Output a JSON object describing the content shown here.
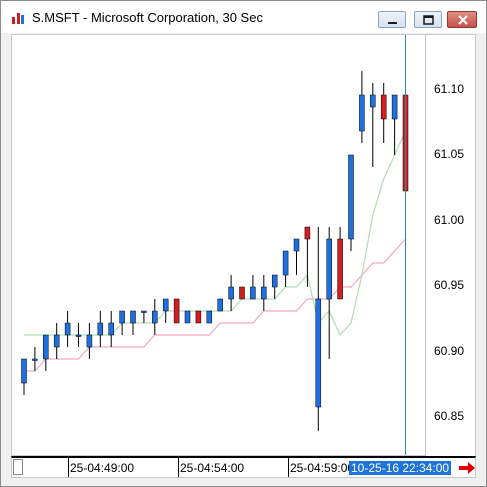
{
  "window": {
    "title": "S.MSFT - Microsoft Corporation, 30 Sec",
    "icon": "chart-app-icon",
    "controls": [
      "minimize-icon",
      "maximize-icon",
      "close-icon"
    ]
  },
  "price_axis": {
    "labels": [
      "61.10",
      "61.05",
      "61.00",
      "60.95",
      "60.90",
      "60.85"
    ]
  },
  "time_axis": {
    "labels": [
      "25-04:49:00",
      "25-04:54:00",
      "25-04:59:00"
    ],
    "crosshair_label": "10-25-16 22:34:00",
    "nav_arrow": "arrow-right-icon"
  },
  "colors": {
    "up": "#1e6fe0",
    "down": "#d21e1e",
    "ma_fast": "#b8dcb8",
    "ma_slow": "#f5a8c8",
    "crosshair": "#2a8aa0"
  },
  "chart_data": {
    "type": "candlestick",
    "ylim": [
      60.81,
      61.16
    ],
    "candles": [
      {
        "o": 60.87,
        "h": 60.89,
        "l": 60.86,
        "c": 60.89
      },
      {
        "o": 60.89,
        "h": 60.9,
        "l": 60.88,
        "c": 60.89
      },
      {
        "o": 60.89,
        "h": 60.91,
        "l": 60.88,
        "c": 60.91
      },
      {
        "o": 60.9,
        "h": 60.92,
        "l": 60.89,
        "c": 60.91
      },
      {
        "o": 60.91,
        "h": 60.93,
        "l": 60.9,
        "c": 60.92
      },
      {
        "o": 60.91,
        "h": 60.92,
        "l": 60.9,
        "c": 60.91
      },
      {
        "o": 60.9,
        "h": 60.92,
        "l": 60.89,
        "c": 60.91
      },
      {
        "o": 60.91,
        "h": 60.93,
        "l": 60.9,
        "c": 60.92
      },
      {
        "o": 60.91,
        "h": 60.93,
        "l": 60.9,
        "c": 60.92
      },
      {
        "o": 60.92,
        "h": 60.93,
        "l": 60.91,
        "c": 60.93
      },
      {
        "o": 60.92,
        "h": 60.93,
        "l": 60.91,
        "c": 60.93
      },
      {
        "o": 60.93,
        "h": 60.93,
        "l": 60.92,
        "c": 60.93
      },
      {
        "o": 60.92,
        "h": 60.94,
        "l": 60.91,
        "c": 60.93
      },
      {
        "o": 60.93,
        "h": 60.94,
        "l": 60.92,
        "c": 60.94
      },
      {
        "o": 60.94,
        "h": 60.94,
        "l": 60.92,
        "c": 60.92
      },
      {
        "o": 60.92,
        "h": 60.93,
        "l": 60.92,
        "c": 60.93
      },
      {
        "o": 60.93,
        "h": 60.93,
        "l": 60.92,
        "c": 60.92
      },
      {
        "o": 60.92,
        "h": 60.93,
        "l": 60.92,
        "c": 60.93
      },
      {
        "o": 60.93,
        "h": 60.94,
        "l": 60.93,
        "c": 60.94
      },
      {
        "o": 60.94,
        "h": 60.96,
        "l": 60.93,
        "c": 60.95
      },
      {
        "o": 60.95,
        "h": 60.95,
        "l": 60.94,
        "c": 60.94
      },
      {
        "o": 60.94,
        "h": 60.96,
        "l": 60.94,
        "c": 60.95
      },
      {
        "o": 60.94,
        "h": 60.96,
        "l": 60.93,
        "c": 60.95
      },
      {
        "o": 60.95,
        "h": 60.96,
        "l": 60.94,
        "c": 60.96
      },
      {
        "o": 60.96,
        "h": 60.98,
        "l": 60.95,
        "c": 60.98
      },
      {
        "o": 60.98,
        "h": 60.99,
        "l": 60.96,
        "c": 60.99
      },
      {
        "o": 61.0,
        "h": 61.0,
        "l": 60.95,
        "c": 60.99
      },
      {
        "o": 60.85,
        "h": 61.0,
        "l": 60.83,
        "c": 60.94
      },
      {
        "o": 60.94,
        "h": 61.0,
        "l": 60.89,
        "c": 60.99
      },
      {
        "o": 60.99,
        "h": 61.0,
        "l": 60.94,
        "c": 60.94
      },
      {
        "o": 60.99,
        "h": 61.06,
        "l": 60.98,
        "c": 61.06
      },
      {
        "o": 61.08,
        "h": 61.13,
        "l": 61.07,
        "c": 61.11
      },
      {
        "o": 61.1,
        "h": 61.12,
        "l": 61.05,
        "c": 61.11
      },
      {
        "o": 61.11,
        "h": 61.12,
        "l": 61.07,
        "c": 61.09
      },
      {
        "o": 61.09,
        "h": 61.11,
        "l": 61.06,
        "c": 61.11
      },
      {
        "o": 61.11,
        "h": 61.12,
        "l": 61.03,
        "c": 61.03
      }
    ],
    "ma_fast": [
      60.91,
      60.91,
      60.91,
      60.91,
      60.91,
      60.91,
      60.91,
      60.91,
      60.91,
      60.92,
      60.92,
      60.92,
      60.92,
      60.93,
      60.93,
      60.93,
      60.93,
      60.93,
      60.93,
      60.93,
      60.94,
      60.94,
      60.94,
      60.94,
      60.95,
      60.95,
      60.96,
      60.92,
      60.93,
      60.91,
      60.92,
      60.96,
      61.01,
      61.04,
      61.06,
      61.08
    ],
    "ma_slow": [
      60.88,
      60.88,
      60.89,
      60.89,
      60.89,
      60.89,
      60.9,
      60.9,
      60.9,
      60.9,
      60.9,
      60.9,
      60.91,
      60.91,
      60.91,
      60.91,
      60.91,
      60.91,
      60.92,
      60.92,
      60.92,
      60.92,
      60.93,
      60.93,
      60.93,
      60.93,
      60.94,
      60.94,
      60.94,
      60.95,
      60.95,
      60.96,
      60.97,
      60.97,
      60.98,
      60.99
    ]
  }
}
